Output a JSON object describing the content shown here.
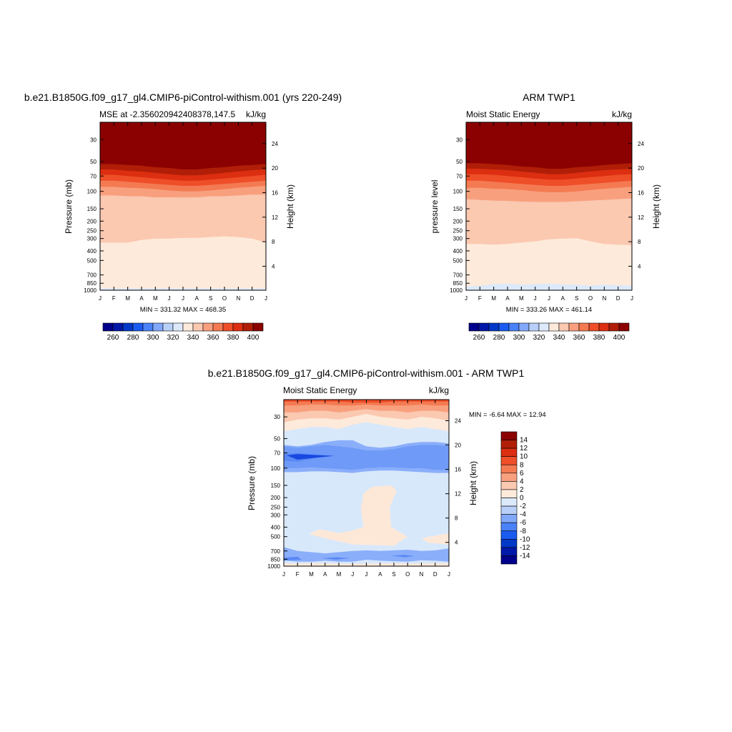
{
  "panels": {
    "model": {
      "title": "b.e21.B1850G.f09_g17_gl4.CMIP6-piControl-withism.001 (yrs 220-249)",
      "left_label": "MSE at -2.356020942408378,147.5",
      "right_label": "kJ/kg",
      "ylabel": "Pressure (mb)",
      "ylabel_right": "Height (km)",
      "minmax": "MIN = 331.32 MAX = 468.35"
    },
    "obs": {
      "title": "ARM TWP1",
      "left_label": "Moist Static Energy",
      "right_label": "kJ/kg",
      "ylabel": "pressure level",
      "ylabel_right": "Height (km)",
      "minmax": "MIN = 333.26 MAX = 461.14"
    },
    "diff": {
      "title": "b.e21.B1850G.f09_g17_gl4.CMIP6-piControl-withism.001 - ARM TWP1",
      "left_label": "Moist Static Energy",
      "right_label": "kJ/kg",
      "ylabel": "Pressure (mb)",
      "ylabel_right": "Height (km)",
      "minmax": "MIN =  -6.64 MAX =  12.94"
    }
  },
  "chart_data": [
    {
      "type": "heatmap",
      "title": "b.e21.B1850G.f09_g17_gl4.CMIP6-piControl-withism.001 (yrs 220-249)",
      "x_ticks": [
        "J",
        "F",
        "M",
        "A",
        "M",
        "J",
        "J",
        "A",
        "S",
        "O",
        "N",
        "D",
        "J"
      ],
      "y_ticks": [
        "30",
        "50",
        "70",
        "100",
        "150",
        "200",
        "250",
        "300",
        "400",
        "500",
        "700",
        "850",
        "1000"
      ],
      "y_ticks_right": [
        "24",
        "20",
        "16",
        "12",
        "8",
        "4"
      ],
      "y_scale": "log",
      "ylim": [
        1000,
        20
      ],
      "levels": [
        260,
        270,
        280,
        290,
        300,
        310,
        320,
        330,
        340,
        350,
        360,
        370,
        380,
        390,
        400
      ],
      "colorbar_labels": [
        "260",
        "280",
        "300",
        "320",
        "340",
        "360",
        "380",
        "400"
      ],
      "layers": [
        {
          "value": 335,
          "p": [
            [
              960,
              960,
              960,
              960,
              960,
              960,
              960,
              960,
              960,
              960,
              960,
              960,
              960
            ]
          ]
        },
        {
          "value": 345,
          "p": [
            [
              330,
              330,
              330,
              310,
              300,
              300,
              295,
              295,
              290,
              285,
              290,
              300,
              330
            ]
          ]
        },
        {
          "value": 355,
          "p": [
            [
              110,
              110,
              112,
              112,
              115,
              115,
              115,
              115,
              112,
              112,
              110,
              108,
              108
            ]
          ]
        },
        {
          "value": 365,
          "p": [
            [
              90,
              90,
              92,
              93,
              95,
              98,
              100,
              100,
              98,
              95,
              92,
              90,
              88
            ]
          ]
        },
        {
          "value": 375,
          "p": [
            [
              78,
              78,
              80,
              82,
              84,
              86,
              88,
              88,
              86,
              84,
              82,
              80,
              78
            ]
          ]
        },
        {
          "value": 385,
          "p": [
            [
              68,
              68,
              70,
              72,
              74,
              76,
              78,
              78,
              76,
              74,
              72,
              70,
              68
            ]
          ]
        },
        {
          "value": 395,
          "p": [
            [
              60,
              60,
              62,
              63,
              65,
              67,
              69,
              69,
              67,
              65,
              63,
              61,
              60
            ]
          ]
        },
        {
          "value": 405,
          "p": [
            [
              53,
              53,
              54,
              55,
              57,
              58,
              60,
              60,
              58,
              57,
              55,
              54,
              53
            ]
          ]
        }
      ]
    },
    {
      "type": "heatmap",
      "title": "ARM TWP1",
      "x_ticks": [
        "J",
        "F",
        "M",
        "A",
        "M",
        "J",
        "J",
        "A",
        "S",
        "O",
        "N",
        "D",
        "J"
      ],
      "y_ticks": [
        "30",
        "50",
        "70",
        "100",
        "150",
        "200",
        "250",
        "300",
        "400",
        "500",
        "700",
        "850",
        "1000"
      ],
      "y_ticks_right": [
        "24",
        "20",
        "16",
        "12",
        "8",
        "4"
      ],
      "y_scale": "log",
      "ylim": [
        1000,
        20
      ],
      "levels": [
        260,
        270,
        280,
        290,
        300,
        310,
        320,
        330,
        340,
        350,
        360,
        370,
        380,
        390,
        400
      ],
      "colorbar_labels": [
        "260",
        "280",
        "300",
        "320",
        "340",
        "360",
        "380",
        "400"
      ],
      "layers": [
        {
          "value": 335,
          "p": [
            [
              920,
              900,
              870,
              860,
              880,
              870,
              860,
              880,
              880,
              900,
              880,
              890,
              900
            ]
          ]
        },
        {
          "value": 345,
          "p": [
            [
              340,
              340,
              345,
              340,
              330,
              320,
              305,
              300,
              298,
              320,
              340,
              345,
              350
            ]
          ]
        },
        {
          "value": 355,
          "p": [
            [
              120,
              122,
              124,
              125,
              127,
              128,
              128,
              128,
              126,
              124,
              122,
              120,
              118
            ]
          ]
        },
        {
          "value": 365,
          "p": [
            [
              92,
              92,
              94,
              95,
              97,
              100,
              102,
              102,
              100,
              97,
              94,
              92,
              90
            ]
          ]
        },
        {
          "value": 375,
          "p": [
            [
              78,
              78,
              80,
              82,
              84,
              86,
              88,
              88,
              86,
              84,
              82,
              80,
              78
            ]
          ]
        },
        {
          "value": 385,
          "p": [
            [
              67,
              67,
              68,
              70,
              72,
              74,
              76,
              76,
              74,
              72,
              70,
              68,
              67
            ]
          ]
        },
        {
          "value": 395,
          "p": [
            [
              59,
              59,
              60,
              61,
              63,
              65,
              67,
              67,
              65,
              63,
              61,
              60,
              59
            ]
          ]
        },
        {
          "value": 405,
          "p": [
            [
              52,
              52,
              53,
              54,
              56,
              57,
              59,
              59,
              57,
              56,
              54,
              53,
              52
            ]
          ]
        }
      ]
    },
    {
      "type": "heatmap",
      "title": "b.e21.B1850G.f09_g17_gl4.CMIP6-piControl-withism.001 - ARM TWP1",
      "x_ticks": [
        "J",
        "F",
        "M",
        "A",
        "M",
        "J",
        "J",
        "A",
        "S",
        "O",
        "N",
        "D",
        "J"
      ],
      "y_ticks": [
        "30",
        "50",
        "70",
        "100",
        "150",
        "200",
        "250",
        "300",
        "400",
        "500",
        "700",
        "850",
        "1000"
      ],
      "y_ticks_right": [
        "24",
        "20",
        "16",
        "12",
        "8",
        "4"
      ],
      "y_scale": "log",
      "ylim": [
        1000,
        20
      ],
      "levels": [
        -14,
        -12,
        -10,
        -8,
        -6,
        -4,
        -2,
        0,
        2,
        4,
        6,
        8,
        10,
        12,
        14
      ],
      "colorbar_labels": [
        "14",
        "12",
        "10",
        "8",
        "6",
        "4",
        "2",
        "0",
        "-2",
        "-4",
        "-6",
        "-8",
        "-10",
        "-12",
        "-14"
      ]
    }
  ],
  "colors": {
    "ramp": [
      "#00008b",
      "#0018a8",
      "#0038c8",
      "#1a5cf0",
      "#4a82f8",
      "#82a8fa",
      "#b8d0f8",
      "#dbe9fb",
      "#fdeadb",
      "#fbc8b0",
      "#f8a07e",
      "#f47a52",
      "#ee4e28",
      "#dc2e10",
      "#b01e08",
      "#8b0000"
    ],
    "diff_bg": "#d8e8fb",
    "diff_blue": "#8aaefa",
    "diff_blue2": "#5a88f5",
    "diff_deep": "#1848e0",
    "diff_warm": "#fde8d8"
  }
}
